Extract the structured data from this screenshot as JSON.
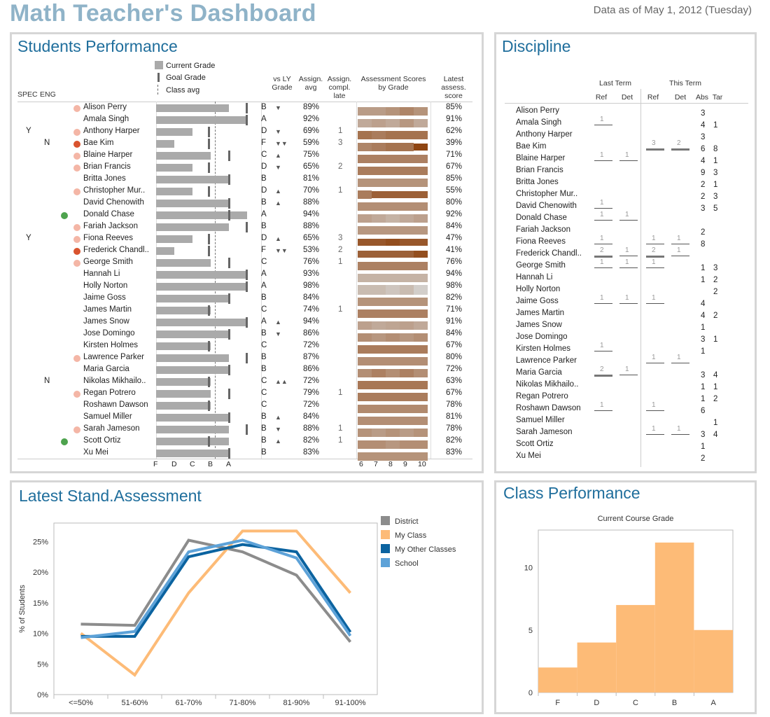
{
  "header": {
    "title": "Math Teacher's Dashboard",
    "as_of": "Data as of May 1, 2012 (Tuesday)"
  },
  "performance": {
    "title": "Students Performance",
    "legend": {
      "current": "Current Grade",
      "goal": "Goal Grade",
      "avg": "Class avg"
    },
    "col_headers": {
      "spec": "SPEC",
      "eng": "ENG",
      "vsly": "vs LY\nGrade",
      "assign_avg": "Assign.\navg",
      "assign_late": "Assign.\ncompl.\nlate",
      "assessment": "Assessment Scores\nby Grade",
      "latest": "Latest\nassess.\nscore"
    },
    "grade_axis": [
      "F",
      "D",
      "C",
      "B",
      "A"
    ],
    "score_axis": [
      "6",
      "7",
      "8",
      "9",
      "10"
    ],
    "students": [
      {
        "spec": "",
        "eng": "",
        "dot": "pink",
        "name": "Alison Perry",
        "cur": 4.0,
        "goal": 4.95,
        "letter": "B",
        "trend": "▼",
        "avg": "89%",
        "late": "",
        "latest": "85%",
        "scores": [
          7.5,
          7.5,
          7.3,
          7.0,
          7.3
        ]
      },
      {
        "spec": "",
        "eng": "",
        "dot": "",
        "name": "Amala Singh",
        "cur": 4.95,
        "goal": 4.95,
        "letter": "A",
        "trend": "",
        "avg": "92%",
        "late": "",
        "latest": "91%",
        "scores": [
          7.8,
          7.6,
          7.8,
          7.4,
          7.8
        ]
      },
      {
        "spec": "Y",
        "eng": "",
        "dot": "pink",
        "name": "Anthony Harper",
        "cur": 2.0,
        "goal": 2.9,
        "letter": "D",
        "trend": "▼",
        "avg": "69%",
        "late": "1",
        "latest": "62%",
        "scores": [
          6.6,
          6.8,
          6.6,
          6.6,
          6.6
        ]
      },
      {
        "spec": "",
        "eng": "N",
        "dot": "red",
        "name": "Bae Kim",
        "cur": 1.0,
        "goal": 2.9,
        "letter": "F",
        "trend": "▼▼",
        "avg": "59%",
        "late": "3",
        "latest": "39%",
        "scores": [
          7.0,
          6.8,
          6.6,
          6.6,
          5.6
        ]
      },
      {
        "spec": "",
        "eng": "",
        "dot": "pink",
        "name": "Blaine Harper",
        "cur": 3.0,
        "goal": 4.0,
        "letter": "C",
        "trend": "▲",
        "avg": "75%",
        "late": "",
        "latest": "71%",
        "scores": [
          6.9,
          6.9,
          6.9,
          6.9,
          6.9
        ]
      },
      {
        "spec": "",
        "eng": "",
        "dot": "pink",
        "name": "Brian Francis",
        "cur": 2.0,
        "goal": 2.9,
        "letter": "D",
        "trend": "▼",
        "avg": "65%",
        "late": "2",
        "latest": "67%",
        "scores": [
          6.8,
          6.8,
          6.8,
          6.8,
          6.8
        ]
      },
      {
        "spec": "",
        "eng": "",
        "dot": "",
        "name": "Britta Jones",
        "cur": 4.0,
        "goal": 4.0,
        "letter": "B",
        "trend": "",
        "avg": "81%",
        "late": "",
        "latest": "85%",
        "scores": [
          7.3,
          7.3,
          7.3,
          7.3,
          7.3
        ]
      },
      {
        "spec": "",
        "eng": "",
        "dot": "pink",
        "name": "Christopher Mur..",
        "cur": 2.0,
        "goal": 2.9,
        "letter": "D",
        "trend": "▲",
        "avg": "70%",
        "late": "1",
        "latest": "55%",
        "scores": [
          6.8,
          6.2,
          6.2,
          6.2,
          6.2
        ]
      },
      {
        "spec": "",
        "eng": "",
        "dot": "",
        "name": "David Chenowith",
        "cur": 4.0,
        "goal": 4.0,
        "letter": "B",
        "trend": "▲",
        "avg": "88%",
        "late": "",
        "latest": "80%",
        "scores": [
          7.2,
          7.2,
          7.2,
          7.2,
          7.2
        ]
      },
      {
        "spec": "",
        "eng": "",
        "dot": "green",
        "name": "Donald Chase",
        "cur": 5.0,
        "goal": 4.0,
        "letter": "A",
        "trend": "",
        "avg": "94%",
        "late": "",
        "latest": "92%",
        "scores": [
          7.6,
          7.8,
          8.0,
          7.8,
          7.6
        ]
      },
      {
        "spec": "",
        "eng": "",
        "dot": "pink",
        "name": "Fariah Jackson",
        "cur": 4.0,
        "goal": 4.95,
        "letter": "B",
        "trend": "",
        "avg": "88%",
        "late": "",
        "latest": "84%",
        "scores": [
          7.4,
          7.4,
          7.4,
          7.4,
          7.4
        ]
      },
      {
        "spec": "Y",
        "eng": "",
        "dot": "pink",
        "name": "Fiona Reeves",
        "cur": 2.0,
        "goal": 2.9,
        "letter": "D",
        "trend": "▲",
        "avg": "65%",
        "late": "3",
        "latest": "47%",
        "scores": [
          6.0,
          6.0,
          5.8,
          6.0,
          6.0
        ]
      },
      {
        "spec": "",
        "eng": "",
        "dot": "red",
        "name": "Frederick Chandl..",
        "cur": 1.0,
        "goal": 2.9,
        "letter": "F",
        "trend": "▼▼",
        "avg": "53%",
        "late": "2",
        "latest": "41%",
        "scores": [
          6.2,
          6.2,
          6.2,
          6.2,
          5.8
        ]
      },
      {
        "spec": "",
        "eng": "",
        "dot": "pink",
        "name": "George Smith",
        "cur": 3.0,
        "goal": 4.0,
        "letter": "C",
        "trend": "",
        "avg": "76%",
        "late": "1",
        "latest": "76%",
        "scores": [
          6.9,
          6.9,
          6.9,
          6.9,
          6.9
        ]
      },
      {
        "spec": "",
        "eng": "",
        "dot": "",
        "name": "Hannah Li",
        "cur": 4.95,
        "goal": 4.95,
        "letter": "A",
        "trend": "",
        "avg": "93%",
        "late": "",
        "latest": "94%",
        "scores": [
          8.0,
          8.0,
          8.0,
          8.0,
          8.0
        ]
      },
      {
        "spec": "",
        "eng": "",
        "dot": "",
        "name": "Holly Norton",
        "cur": 4.95,
        "goal": 4.95,
        "letter": "A",
        "trend": "",
        "avg": "98%",
        "late": "",
        "latest": "98%",
        "scores": [
          8.2,
          8.2,
          8.4,
          8.2,
          8.6
        ]
      },
      {
        "spec": "",
        "eng": "",
        "dot": "",
        "name": "Jaime Goss",
        "cur": 4.0,
        "goal": 4.0,
        "letter": "B",
        "trend": "",
        "avg": "84%",
        "late": "",
        "latest": "82%",
        "scores": [
          7.3,
          7.3,
          7.3,
          7.3,
          7.3
        ]
      },
      {
        "spec": "",
        "eng": "",
        "dot": "",
        "name": "James Martin",
        "cur": 3.0,
        "goal": 2.9,
        "letter": "C",
        "trend": "",
        "avg": "74%",
        "late": "1",
        "latest": "71%",
        "scores": [
          6.9,
          6.9,
          6.9,
          6.9,
          6.9
        ]
      },
      {
        "spec": "",
        "eng": "",
        "dot": "",
        "name": "James Snow",
        "cur": 4.95,
        "goal": 4.95,
        "letter": "A",
        "trend": "▲",
        "avg": "94%",
        "late": "",
        "latest": "91%",
        "scores": [
          7.6,
          7.8,
          7.7,
          7.6,
          7.8
        ]
      },
      {
        "spec": "",
        "eng": "",
        "dot": "",
        "name": "Jose Domingo",
        "cur": 4.0,
        "goal": 4.0,
        "letter": "B",
        "trend": "▼",
        "avg": "86%",
        "late": "",
        "latest": "84%",
        "scores": [
          7.2,
          7.4,
          7.2,
          7.4,
          7.2
        ]
      },
      {
        "spec": "",
        "eng": "",
        "dot": "",
        "name": "Kirsten Holmes",
        "cur": 3.0,
        "goal": 2.9,
        "letter": "C",
        "trend": "",
        "avg": "72%",
        "late": "",
        "latest": "67%",
        "scores": [
          6.8,
          6.8,
          6.8,
          6.8,
          6.8
        ]
      },
      {
        "spec": "",
        "eng": "",
        "dot": "pink",
        "name": "Lawrence Parker",
        "cur": 4.0,
        "goal": 4.95,
        "letter": "B",
        "trend": "",
        "avg": "87%",
        "late": "",
        "latest": "80%",
        "scores": [
          7.2,
          7.2,
          7.2,
          7.2,
          7.2
        ]
      },
      {
        "spec": "",
        "eng": "",
        "dot": "",
        "name": "Maria Garcia",
        "cur": 4.0,
        "goal": 4.0,
        "letter": "B",
        "trend": "",
        "avg": "86%",
        "late": "",
        "latest": "72%",
        "scores": [
          7.2,
          6.9,
          7.2,
          6.9,
          7.2
        ]
      },
      {
        "spec": "",
        "eng": "N",
        "dot": "",
        "name": "Nikolas Mikhailo..",
        "cur": 3.0,
        "goal": 2.9,
        "letter": "C",
        "trend": "▲▲",
        "avg": "72%",
        "late": "",
        "latest": "63%",
        "scores": [
          6.7,
          6.7,
          6.7,
          6.7,
          6.7
        ]
      },
      {
        "spec": "",
        "eng": "",
        "dot": "pink",
        "name": "Regan Potrero",
        "cur": 3.0,
        "goal": 4.0,
        "letter": "C",
        "trend": "",
        "avg": "79%",
        "late": "1",
        "latest": "67%",
        "scores": [
          6.8,
          6.8,
          6.8,
          6.8,
          6.8
        ]
      },
      {
        "spec": "",
        "eng": "",
        "dot": "",
        "name": "Roshawn Dawson",
        "cur": 3.0,
        "goal": 2.9,
        "letter": "C",
        "trend": "",
        "avg": "72%",
        "late": "",
        "latest": "78%",
        "scores": [
          7.1,
          7.1,
          7.1,
          7.1,
          7.1
        ]
      },
      {
        "spec": "",
        "eng": "",
        "dot": "",
        "name": "Samuel Miller",
        "cur": 4.0,
        "goal": 4.0,
        "letter": "B",
        "trend": "▲",
        "avg": "84%",
        "late": "",
        "latest": "81%",
        "scores": [
          7.2,
          7.2,
          7.2,
          7.2,
          7.2
        ]
      },
      {
        "spec": "",
        "eng": "",
        "dot": "pink",
        "name": "Sarah Jameson",
        "cur": 4.0,
        "goal": 4.95,
        "letter": "B",
        "trend": "▼",
        "avg": "88%",
        "late": "1",
        "latest": "78%",
        "scores": [
          7.3,
          7.5,
          7.3,
          7.5,
          7.3
        ]
      },
      {
        "spec": "",
        "eng": "",
        "dot": "green",
        "name": "Scott Ortiz",
        "cur": 4.0,
        "goal": 2.9,
        "letter": "B",
        "trend": "▲",
        "avg": "82%",
        "late": "1",
        "latest": "82%",
        "scores": [
          7.2,
          7.2,
          7.4,
          7.2,
          7.2
        ]
      },
      {
        "spec": "",
        "eng": "",
        "dot": "",
        "name": "Xu Mei",
        "cur": 4.0,
        "goal": 4.0,
        "letter": "B",
        "trend": "",
        "avg": "83%",
        "late": "",
        "latest": "83%",
        "scores": [
          7.3,
          7.3,
          7.3,
          7.3,
          7.3
        ]
      }
    ]
  },
  "discipline": {
    "title": "Discipline",
    "headers": {
      "last_term": "Last Term",
      "this_term": "This Term",
      "ref": "Ref",
      "det": "Det",
      "abs": "Abs",
      "tar": "Tar"
    },
    "rows": [
      {
        "name": "Alison Perry",
        "lt_ref": "",
        "lt_det": "",
        "tt_ref": "",
        "tt_det": "",
        "abs": "3",
        "tar": ""
      },
      {
        "name": "Amala Singh",
        "lt_ref": "1",
        "lt_det": "",
        "tt_ref": "",
        "tt_det": "",
        "abs": "4",
        "tar": "1"
      },
      {
        "name": "Anthony Harper",
        "lt_ref": "",
        "lt_det": "",
        "tt_ref": "",
        "tt_det": "",
        "abs": "3",
        "tar": ""
      },
      {
        "name": "Bae Kim",
        "lt_ref": "",
        "lt_det": "",
        "tt_ref": "3",
        "tt_det": "2",
        "abs": "6",
        "tar": "8"
      },
      {
        "name": "Blaine Harper",
        "lt_ref": "1",
        "lt_det": "1",
        "tt_ref": "",
        "tt_det": "",
        "abs": "4",
        "tar": "1"
      },
      {
        "name": "Brian Francis",
        "lt_ref": "",
        "lt_det": "",
        "tt_ref": "",
        "tt_det": "",
        "abs": "9",
        "tar": "3"
      },
      {
        "name": "Britta Jones",
        "lt_ref": "",
        "lt_det": "",
        "tt_ref": "",
        "tt_det": "",
        "abs": "2",
        "tar": "1"
      },
      {
        "name": "Christopher Mur..",
        "lt_ref": "",
        "lt_det": "",
        "tt_ref": "",
        "tt_det": "",
        "abs": "2",
        "tar": "3"
      },
      {
        "name": "David Chenowith",
        "lt_ref": "1",
        "lt_det": "",
        "tt_ref": "",
        "tt_det": "",
        "abs": "3",
        "tar": "5"
      },
      {
        "name": "Donald Chase",
        "lt_ref": "1",
        "lt_det": "1",
        "tt_ref": "",
        "tt_det": "",
        "abs": "",
        "tar": ""
      },
      {
        "name": "Fariah Jackson",
        "lt_ref": "",
        "lt_det": "",
        "tt_ref": "",
        "tt_det": "",
        "abs": "2",
        "tar": ""
      },
      {
        "name": "Fiona Reeves",
        "lt_ref": "1",
        "lt_det": "",
        "tt_ref": "1",
        "tt_det": "1",
        "abs": "8",
        "tar": ""
      },
      {
        "name": "Frederick Chandl..",
        "lt_ref": "2",
        "lt_det": "1",
        "tt_ref": "2",
        "tt_det": "1",
        "abs": "",
        "tar": ""
      },
      {
        "name": "George Smith",
        "lt_ref": "1",
        "lt_det": "1",
        "tt_ref": "1",
        "tt_det": "",
        "abs": "1",
        "tar": "3"
      },
      {
        "name": "Hannah Li",
        "lt_ref": "",
        "lt_det": "",
        "tt_ref": "",
        "tt_det": "",
        "abs": "1",
        "tar": "2"
      },
      {
        "name": "Holly Norton",
        "lt_ref": "",
        "lt_det": "",
        "tt_ref": "",
        "tt_det": "",
        "abs": "",
        "tar": "2"
      },
      {
        "name": "Jaime Goss",
        "lt_ref": "1",
        "lt_det": "1",
        "tt_ref": "1",
        "tt_det": "",
        "abs": "4",
        "tar": ""
      },
      {
        "name": "James Martin",
        "lt_ref": "",
        "lt_det": "",
        "tt_ref": "",
        "tt_det": "",
        "abs": "4",
        "tar": "2"
      },
      {
        "name": "James Snow",
        "lt_ref": "",
        "lt_det": "",
        "tt_ref": "",
        "tt_det": "",
        "abs": "1",
        "tar": ""
      },
      {
        "name": "Jose Domingo",
        "lt_ref": "",
        "lt_det": "",
        "tt_ref": "",
        "tt_det": "",
        "abs": "3",
        "tar": "1"
      },
      {
        "name": "Kirsten Holmes",
        "lt_ref": "1",
        "lt_det": "",
        "tt_ref": "",
        "tt_det": "",
        "abs": "1",
        "tar": ""
      },
      {
        "name": "Lawrence Parker",
        "lt_ref": "",
        "lt_det": "",
        "tt_ref": "1",
        "tt_det": "1",
        "abs": "",
        "tar": ""
      },
      {
        "name": "Maria Garcia",
        "lt_ref": "2",
        "lt_det": "1",
        "tt_ref": "",
        "tt_det": "",
        "abs": "3",
        "tar": "4"
      },
      {
        "name": "Nikolas Mikhailo..",
        "lt_ref": "",
        "lt_det": "",
        "tt_ref": "",
        "tt_det": "",
        "abs": "1",
        "tar": "1"
      },
      {
        "name": "Regan Potrero",
        "lt_ref": "",
        "lt_det": "",
        "tt_ref": "",
        "tt_det": "",
        "abs": "1",
        "tar": "2"
      },
      {
        "name": "Roshawn Dawson",
        "lt_ref": "1",
        "lt_det": "",
        "tt_ref": "1",
        "tt_det": "",
        "abs": "6",
        "tar": ""
      },
      {
        "name": "Samuel Miller",
        "lt_ref": "",
        "lt_det": "",
        "tt_ref": "",
        "tt_det": "",
        "abs": "",
        "tar": "1"
      },
      {
        "name": "Sarah Jameson",
        "lt_ref": "",
        "lt_det": "",
        "tt_ref": "1",
        "tt_det": "1",
        "abs": "3",
        "tar": "4"
      },
      {
        "name": "Scott Ortiz",
        "lt_ref": "",
        "lt_det": "",
        "tt_ref": "",
        "tt_det": "",
        "abs": "1",
        "tar": ""
      },
      {
        "name": "Xu Mei",
        "lt_ref": "",
        "lt_det": "",
        "tt_ref": "",
        "tt_det": "",
        "abs": "2",
        "tar": ""
      }
    ]
  },
  "standardized": {
    "title": "Latest Stand.Assessment",
    "chart_data": {
      "type": "line",
      "categories": [
        "<=50%",
        "51-60%",
        "61-70%",
        "71-80%",
        "81-90%",
        "91-100%"
      ],
      "ylabel": "% of Students",
      "yticks": [
        "0%",
        "5%",
        "10%",
        "15%",
        "20%",
        "25%"
      ],
      "ylim": [
        0,
        28
      ],
      "legend_position": "right",
      "series": [
        {
          "name": "District",
          "color": "#8c8c8c",
          "values": [
            11.5,
            11.3,
            25.2,
            23.3,
            19.5,
            8.6
          ]
        },
        {
          "name": "My Class",
          "color": "#fdbb77",
          "values": [
            10.0,
            3.2,
            16.6,
            26.7,
            26.7,
            16.6
          ]
        },
        {
          "name": "My Other Classes",
          "color": "#0b63a0",
          "values": [
            9.5,
            9.5,
            22.5,
            24.5,
            23.3,
            10.2
          ]
        },
        {
          "name": "School",
          "color": "#5da2d8",
          "values": [
            9.3,
            10.3,
            23.3,
            25.2,
            22.3,
            9.6
          ]
        }
      ]
    }
  },
  "class_perf": {
    "title": "Class Performance",
    "chart_data": {
      "type": "bar",
      "title": "Current Course Grade",
      "categories": [
        "F",
        "D",
        "C",
        "B",
        "A"
      ],
      "values": [
        2,
        4,
        7,
        12,
        5
      ],
      "ylim": [
        0,
        14
      ],
      "yticks": [
        "0",
        "5",
        "10"
      ],
      "color": "#fdbb77"
    }
  }
}
